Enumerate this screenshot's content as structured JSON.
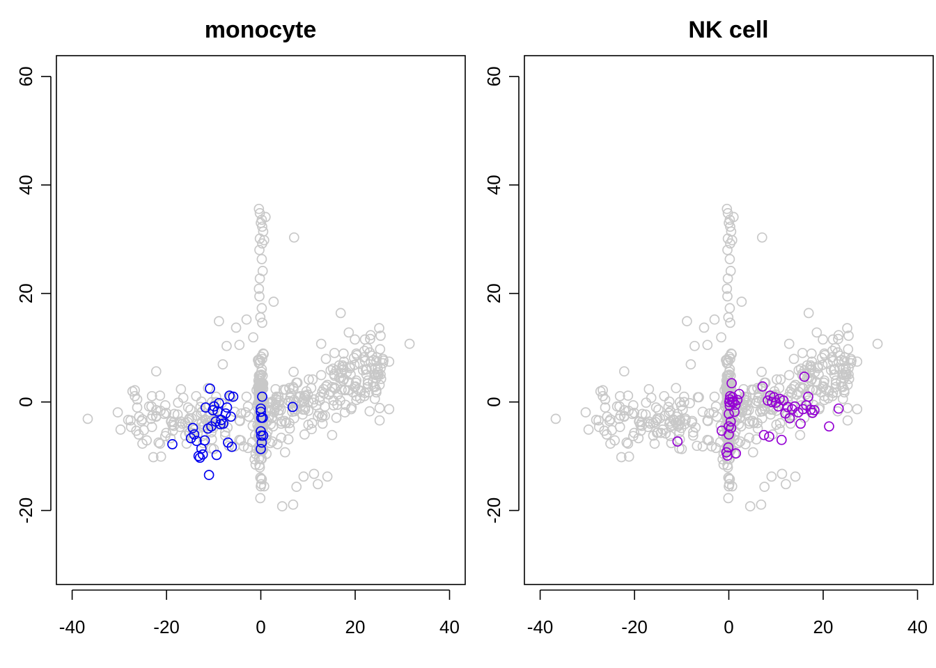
{
  "chart_data": [
    {
      "type": "scatter",
      "title": "monocyte",
      "xlabel": "",
      "ylabel": "",
      "xlim": [
        -43,
        43
      ],
      "ylim": [
        -34,
        64
      ],
      "xticks": [
        "-40",
        "-20",
        "0",
        "20",
        "40"
      ],
      "yticks": [
        "-20",
        "0",
        "20",
        "40",
        "60"
      ],
      "grid": false,
      "legend": "none",
      "series": [
        {
          "color": "#c8c8c8",
          "marker": "open-circle",
          "points": []
        },
        {
          "color": "#0000ee",
          "marker": "open-circle",
          "points": []
        }
      ]
    },
    {
      "type": "scatter",
      "title": "NK cell",
      "xlabel": "",
      "ylabel": "",
      "xlim": [
        -43,
        43
      ],
      "ylim": [
        -34,
        64
      ],
      "xticks": [
        "-40",
        "-20",
        "0",
        "20",
        "40"
      ],
      "yticks": [
        "-20",
        "0",
        "20",
        "40",
        "60"
      ],
      "grid": false,
      "legend": "none",
      "series": [
        {
          "color": "#c8c8c8",
          "marker": "open-circle",
          "points": []
        },
        {
          "color": "#9400d3",
          "marker": "open-circle",
          "points": []
        }
      ]
    }
  ]
}
